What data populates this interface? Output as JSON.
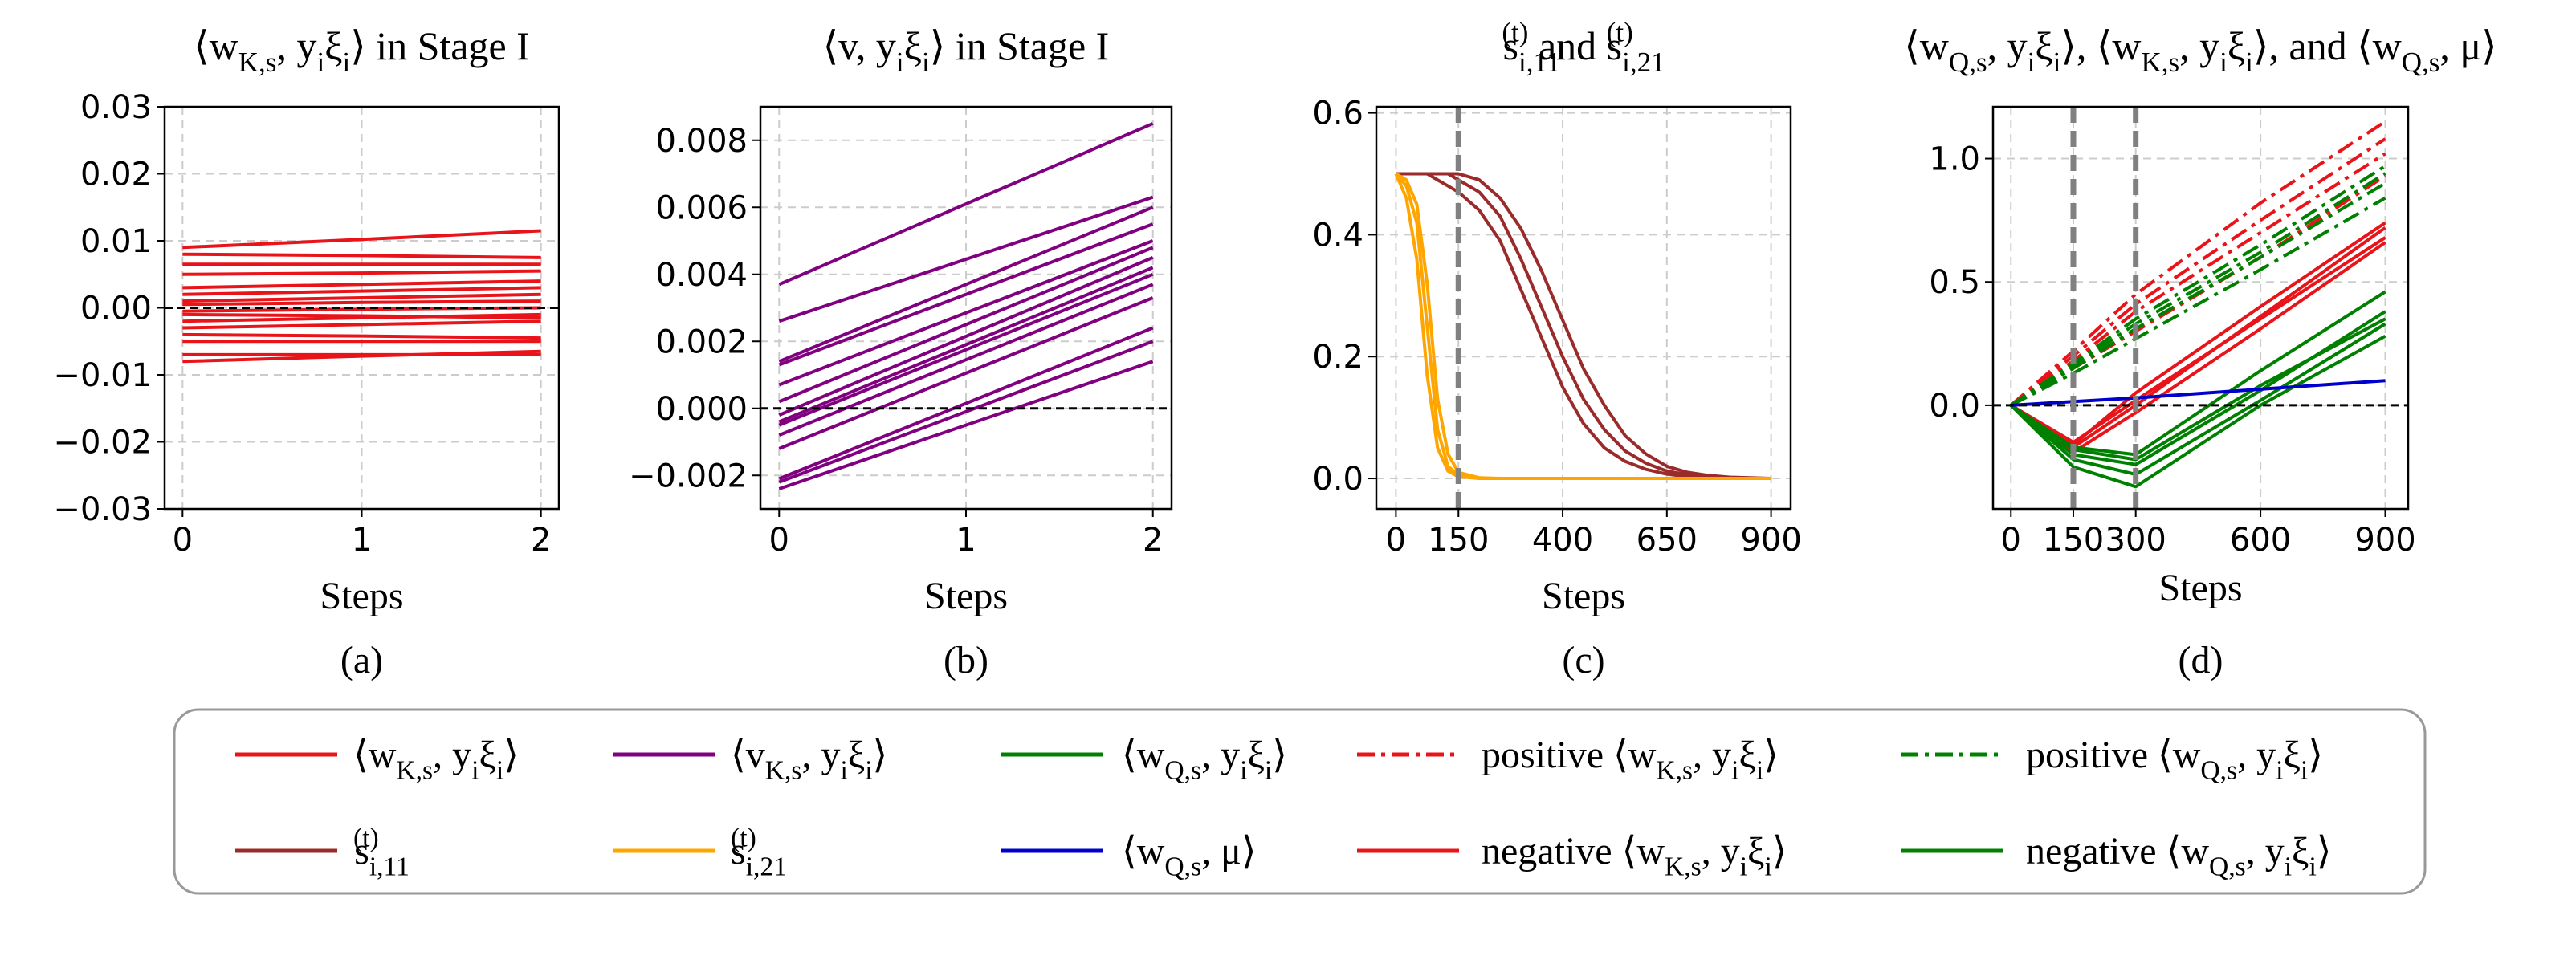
{
  "chart_data": [
    {
      "type": "line",
      "title": "⟨w_{K,s}, y_iξ_i⟩ in Stage I",
      "xlabel": "Steps",
      "caption": "(a)",
      "color": "#e8141a",
      "grid": true,
      "hline": 0,
      "x": [
        0,
        1,
        2
      ],
      "xlim": [
        -0.1,
        2.1
      ],
      "xticks": [
        0,
        1,
        2
      ],
      "ylim": [
        -0.03,
        0.03
      ],
      "yticks": [
        {
          "value": -0.03,
          "label": "−0.03"
        },
        {
          "value": -0.02,
          "label": "−0.02"
        },
        {
          "value": -0.01,
          "label": "−0.01"
        },
        {
          "value": 0,
          "label": "0.00"
        },
        0.01,
        0.02,
        0.03
      ],
      "series": [
        {
          "values": [
            0.009,
            0.0102,
            0.0115
          ]
        },
        {
          "values": [
            0.008,
            0.0078,
            0.0075
          ]
        },
        {
          "values": [
            0.0065,
            0.0065,
            0.0065
          ]
        },
        {
          "values": [
            0.005,
            0.0052,
            0.0055
          ]
        },
        {
          "values": [
            0.003,
            0.0035,
            0.004
          ]
        },
        {
          "values": [
            0.002,
            0.0025,
            0.003
          ]
        },
        {
          "values": [
            0.001,
            0.0015,
            0.002
          ]
        },
        {
          "values": [
            0.0005,
            0.0008,
            0.001
          ]
        },
        {
          "values": [
            -0.0005,
            -0.0002,
            0.0
          ]
        },
        {
          "values": [
            -0.001,
            -0.0012,
            -0.0015
          ]
        },
        {
          "values": [
            -0.002,
            -0.0015,
            -0.001
          ]
        },
        {
          "values": [
            -0.003,
            -0.0025,
            -0.002
          ]
        },
        {
          "values": [
            -0.004,
            -0.0042,
            -0.0045
          ]
        },
        {
          "values": [
            -0.005,
            -0.005,
            -0.005
          ]
        },
        {
          "values": [
            -0.007,
            -0.007,
            -0.007
          ]
        },
        {
          "values": [
            -0.008,
            -0.0072,
            -0.0065
          ]
        }
      ]
    },
    {
      "type": "line",
      "title": "⟨v, y_iξ_i⟩ in Stage I",
      "xlabel": "Steps",
      "caption": "(b)",
      "color": "#800080",
      "grid": true,
      "hline": 0,
      "x": [
        0,
        1,
        2
      ],
      "xlim": [
        -0.1,
        2.1
      ],
      "xticks": [
        0,
        1,
        2
      ],
      "ylim": [
        -0.003,
        0.009
      ],
      "yticks": [
        {
          "value": -0.002,
          "label": "−0.002"
        },
        {
          "value": 0,
          "label": "0.000"
        },
        0.002,
        0.004,
        0.006,
        0.008
      ],
      "series": [
        {
          "values": [
            0.0037,
            0.0061,
            0.0085
          ]
        },
        {
          "values": [
            0.0026,
            0.00445,
            0.0063
          ]
        },
        {
          "values": [
            0.0014,
            0.0037,
            0.006
          ]
        },
        {
          "values": [
            0.0013,
            0.0034,
            0.0055
          ]
        },
        {
          "values": [
            0.0007,
            0.00285,
            0.005
          ]
        },
        {
          "values": [
            0.0002,
            0.0025,
            0.0048
          ]
        },
        {
          "values": [
            -0.0002,
            0.00215,
            0.0045
          ]
        },
        {
          "values": [
            -0.0004,
            0.0019,
            0.0042
          ]
        },
        {
          "values": [
            -0.0005,
            0.00175,
            0.004
          ]
        },
        {
          "values": [
            -0.0008,
            0.00145,
            0.0037
          ]
        },
        {
          "values": [
            -0.0012,
            0.00105,
            0.0033
          ]
        },
        {
          "values": [
            -0.0021,
            0.00015,
            0.0024
          ]
        },
        {
          "values": [
            -0.0022,
            -0.0001,
            0.002
          ]
        },
        {
          "values": [
            -0.0024,
            -0.0005,
            0.0014
          ]
        }
      ]
    },
    {
      "type": "line",
      "title": "s_{i,11}^{(t)} and s_{i,21}^{(t)}",
      "xlabel": "Steps",
      "caption": "(c)",
      "grid": true,
      "vlines": [
        150
      ],
      "x": [
        0,
        25,
        50,
        75,
        100,
        125,
        150,
        200,
        250,
        300,
        350,
        400,
        450,
        500,
        550,
        600,
        650,
        700,
        750,
        800,
        850,
        900
      ],
      "xlim": [
        -47,
        947
      ],
      "xticks": [
        0,
        150,
        400,
        650,
        900
      ],
      "ylim": [
        -0.05,
        0.61
      ],
      "yticks": [
        {
          "value": 0,
          "label": "0.0"
        },
        0.2,
        0.4,
        0.6
      ],
      "series": [
        {
          "color": "#9b2a2a",
          "values": [
            0.5,
            0.5,
            0.5,
            0.5,
            0.5,
            0.5,
            0.49,
            0.47,
            0.43,
            0.36,
            0.28,
            0.2,
            0.13,
            0.08,
            0.045,
            0.025,
            0.012,
            0.006,
            0.003,
            0.001,
            0,
            0
          ]
        },
        {
          "color": "#9b2a2a",
          "values": [
            0.5,
            0.5,
            0.5,
            0.5,
            0.49,
            0.48,
            0.47,
            0.44,
            0.39,
            0.31,
            0.23,
            0.15,
            0.09,
            0.05,
            0.028,
            0.015,
            0.007,
            0.003,
            0.001,
            0,
            0,
            0
          ]
        },
        {
          "color": "#9b2a2a",
          "values": [
            0.5,
            0.5,
            0.5,
            0.5,
            0.5,
            0.5,
            0.5,
            0.49,
            0.46,
            0.41,
            0.34,
            0.26,
            0.18,
            0.12,
            0.07,
            0.04,
            0.02,
            0.01,
            0.005,
            0.002,
            0.001,
            0
          ]
        },
        {
          "color": "#ffa500",
          "values": [
            0.5,
            0.48,
            0.42,
            0.25,
            0.08,
            0.02,
            0.005,
            0,
            0,
            0,
            0,
            0,
            0,
            0,
            0,
            0,
            0,
            0,
            0,
            0,
            0,
            0
          ]
        },
        {
          "color": "#ffa500",
          "values": [
            0.5,
            0.46,
            0.36,
            0.17,
            0.05,
            0.012,
            0.003,
            0,
            0,
            0,
            0,
            0,
            0,
            0,
            0,
            0,
            0,
            0,
            0,
            0,
            0,
            0
          ]
        },
        {
          "color": "#ffa500",
          "values": [
            0.5,
            0.49,
            0.45,
            0.32,
            0.13,
            0.04,
            0.01,
            0.001,
            0,
            0,
            0,
            0,
            0,
            0,
            0,
            0,
            0,
            0,
            0,
            0,
            0,
            0
          ]
        }
      ]
    },
    {
      "type": "line",
      "title": "⟨w_{Q,s}, y_iξ_i⟩, ⟨w_{K,s}, y_iξ_i⟩, and ⟨w_{Q,s}, μ⟩",
      "xlabel": "Steps",
      "caption": "(d)",
      "grid": true,
      "hline": 0,
      "vlines": [
        150,
        300
      ],
      "x": [
        0,
        150,
        300,
        600,
        900
      ],
      "xlim": [
        -43,
        955
      ],
      "xticks": [
        0,
        150,
        300,
        600,
        900
      ],
      "ylim": [
        -0.42,
        1.21
      ],
      "yticks": [
        {
          "value": 0,
          "label": "0.0"
        },
        0.5,
        {
          "value": 1,
          "label": "1.0"
        }
      ],
      "series": [
        {
          "color": "#e8141a",
          "style": "dashdot",
          "values": [
            0,
            0.22,
            0.45,
            0.82,
            1.15
          ]
        },
        {
          "color": "#e8141a",
          "style": "dashdot",
          "values": [
            0,
            0.2,
            0.41,
            0.75,
            1.08
          ]
        },
        {
          "color": "#e8141a",
          "style": "dashdot",
          "values": [
            0,
            0.18,
            0.38,
            0.7,
            1.02
          ]
        },
        {
          "color": "#e8141a",
          "style": "dashdot",
          "values": [
            0,
            0.15,
            0.3,
            0.6,
            0.93
          ]
        },
        {
          "color": "#008000",
          "style": "dashdot",
          "values": [
            0,
            0.17,
            0.35,
            0.65,
            0.97
          ]
        },
        {
          "color": "#008000",
          "style": "dashdot",
          "values": [
            0,
            0.15,
            0.31,
            0.6,
            0.9
          ]
        },
        {
          "color": "#008000",
          "style": "dashdot",
          "values": [
            0,
            0.13,
            0.27,
            0.55,
            0.84
          ]
        },
        {
          "color": "#008000",
          "style": "dashdot",
          "values": [
            0,
            0.16,
            0.33,
            0.62,
            0.94
          ]
        },
        {
          "color": "#e8141a",
          "style": "solid",
          "values": [
            0,
            -0.17,
            0.0,
            0.36,
            0.72
          ]
        },
        {
          "color": "#e8141a",
          "style": "solid",
          "values": [
            0,
            -0.15,
            0.02,
            0.35,
            0.68
          ]
        },
        {
          "color": "#e8141a",
          "style": "solid",
          "values": [
            0,
            -0.19,
            -0.03,
            0.31,
            0.66
          ]
        },
        {
          "color": "#e8141a",
          "style": "solid",
          "values": [
            0,
            -0.16,
            0.05,
            0.4,
            0.74
          ]
        },
        {
          "color": "#008000",
          "style": "solid",
          "values": [
            0,
            -0.17,
            -0.2,
            0.14,
            0.46
          ]
        },
        {
          "color": "#008000",
          "style": "solid",
          "values": [
            0,
            -0.22,
            -0.28,
            0.02,
            0.33
          ]
        },
        {
          "color": "#008000",
          "style": "solid",
          "values": [
            0,
            -0.25,
            -0.33,
            0.0,
            0.28
          ]
        },
        {
          "color": "#008000",
          "style": "solid",
          "values": [
            0,
            -0.2,
            -0.24,
            0.06,
            0.38
          ]
        },
        {
          "color": "#008000",
          "style": "solid",
          "values": [
            0,
            -0.18,
            -0.22,
            0.08,
            0.35
          ]
        },
        {
          "color": "#0000cd",
          "style": "solid",
          "values": [
            0,
            0.015,
            0.03,
            0.065,
            0.1
          ]
        }
      ]
    }
  ],
  "legend": [
    {
      "label": "⟨w_{K,s}, y_iξ_i⟩",
      "color": "#e8141a",
      "style": "solid"
    },
    {
      "label": "⟨v_{K,s}, y_iξ_i⟩",
      "color": "#800080",
      "style": "solid"
    },
    {
      "label": "⟨w_{Q,s}, y_iξ_i⟩",
      "color": "#008000",
      "style": "solid"
    },
    {
      "label": "positive ⟨w_{K,s}, y_iξ_i⟩",
      "color": "#e8141a",
      "style": "dashdot"
    },
    {
      "label": "positive ⟨w_{Q,s}, y_iξ_i⟩",
      "color": "#008000",
      "style": "dashdot"
    },
    {
      "label": "s_{i,11}^{(t)}",
      "color": "#9b2a2a",
      "style": "solid"
    },
    {
      "label": "s_{i,21}^{(t)}",
      "color": "#ffa500",
      "style": "solid"
    },
    {
      "label": "⟨w_{Q,s}, μ⟩",
      "color": "#0000cd",
      "style": "solid"
    },
    {
      "label": "negative ⟨w_{K,s}, y_iξ_i⟩",
      "color": "#e8141a",
      "style": "solid"
    },
    {
      "label": "negative ⟨w_{Q,s}, y_iξ_i⟩",
      "color": "#008000",
      "style": "solid"
    }
  ]
}
